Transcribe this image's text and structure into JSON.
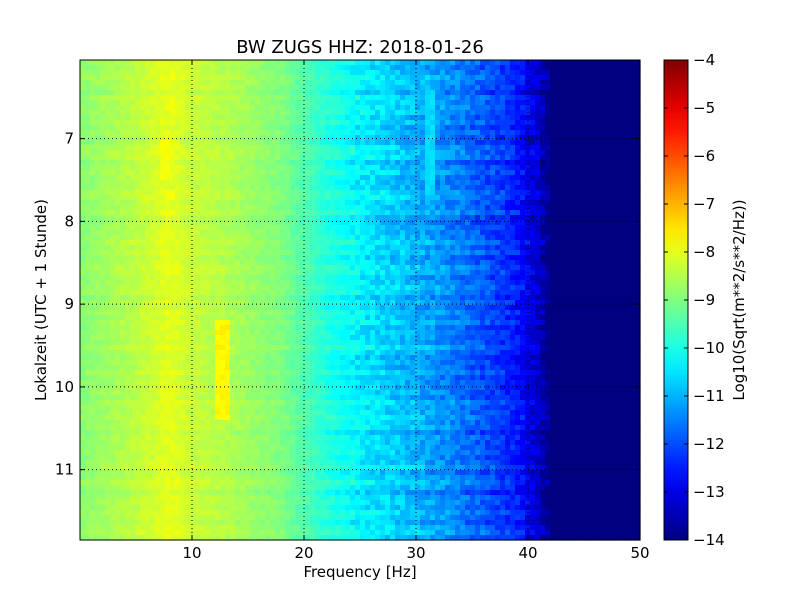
{
  "chart_data": {
    "type": "heatmap",
    "title": "BW ZUGS HHZ: 2018-01-26",
    "xlabel": "Frequency [Hz]",
    "ylabel": "Lokalzeit (UTC + 1 Stunde)",
    "xlim": [
      0,
      50
    ],
    "ylim": [
      6.05,
      11.85
    ],
    "x_ticks": [
      10,
      20,
      30,
      40,
      50
    ],
    "y_ticks": [
      7,
      8,
      9,
      10,
      11
    ],
    "y_inverted": true,
    "grid": true,
    "colorscale": "jet",
    "colorbar": {
      "label": "Log10(Sqrt(m**2/s**2/Hz))",
      "range": [
        -14,
        -4
      ],
      "ticks": [
        -4,
        -5,
        -6,
        -7,
        -8,
        -9,
        -10,
        -11,
        -12,
        -13,
        -14
      ]
    },
    "z_profile_by_frequency": {
      "frequency_hz": [
        0,
        5,
        8,
        10,
        13,
        18,
        22,
        26,
        30,
        33,
        36,
        39,
        41,
        42,
        50
      ],
      "log10_amplitude": [
        -8.9,
        -8.4,
        -8.0,
        -8.3,
        -8.5,
        -9.0,
        -9.9,
        -10.5,
        -11.0,
        -11.4,
        -11.9,
        -12.5,
        -13.3,
        -14.0,
        -14.0
      ]
    },
    "features": [
      {
        "frequency_hz": 12.8,
        "time_start": 9.2,
        "time_end": 10.4,
        "log10_amplitude": -7.7
      },
      {
        "frequency_hz": 31.3,
        "time_start": 6.4,
        "time_end": 7.7,
        "log10_amplitude": -10.6
      },
      {
        "frequency_hz": 37.5,
        "time_start": 6.05,
        "time_end": 11.85,
        "log10_amplitude": -12.8
      },
      {
        "frequency_hz": 7.5,
        "time_start": 7.0,
        "time_end": 7.5,
        "log10_amplitude": -7.8
      }
    ]
  }
}
